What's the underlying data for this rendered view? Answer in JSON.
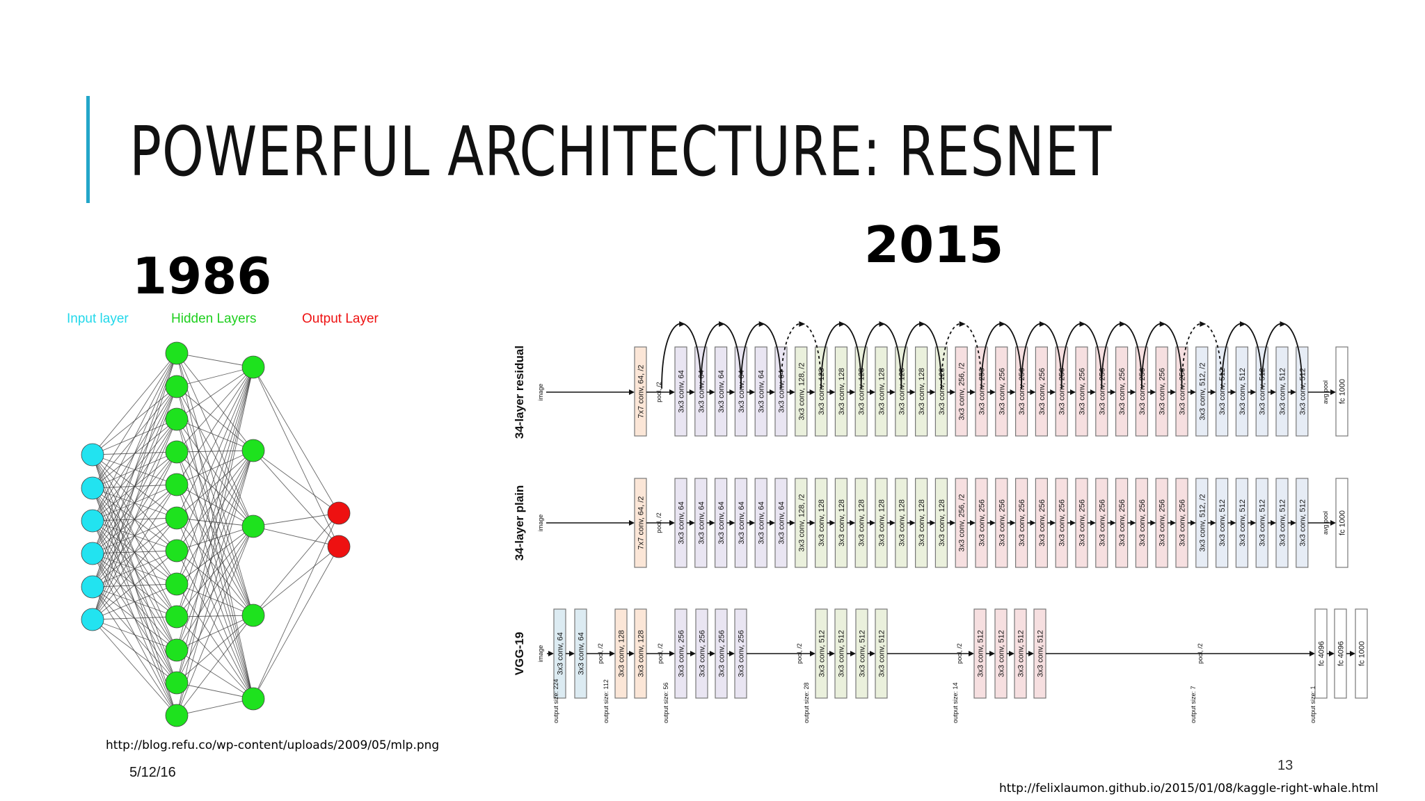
{
  "slide": {
    "title": "POWERFUL ARCHITECTURE: RESNET",
    "year_left": "1986",
    "year_right": "2015",
    "date": "5/12/16",
    "page_number": "13",
    "source_left": "http://blog.refu.co/wp-content/uploads/2009/05/mlp.png",
    "source_right": "http://felixlaumon.github.io/2015/01/08/kaggle-right-whale.html"
  },
  "mlp": {
    "input_label": "Input layer",
    "hidden_label": "Hidden Layers",
    "output_label": "Output Layer",
    "input_color": "#22e3f0",
    "hidden_color": "#1ee21e",
    "output_color": "#ee1111",
    "layer_sizes": [
      6,
      12,
      5,
      2
    ]
  },
  "nets": {
    "image_label": "image",
    "residual": {
      "name": "34-layer residual",
      "stem": "7x7 conv, 64, /2",
      "pool": "pool, /2",
      "blocks": [
        "3x3 conv, 64",
        "3x3 conv, 64",
        "3x3 conv, 64",
        "3x3 conv, 64",
        "3x3 conv, 64",
        "3x3 conv, 64",
        "3x3 conv, 128, /2",
        "3x3 conv, 128",
        "3x3 conv, 128",
        "3x3 conv, 128",
        "3x3 conv, 128",
        "3x3 conv, 128",
        "3x3 conv, 128",
        "3x3 conv, 128",
        "3x3 conv, 256, /2",
        "3x3 conv, 256",
        "3x3 conv, 256",
        "3x3 conv, 256",
        "3x3 conv, 256",
        "3x3 conv, 256",
        "3x3 conv, 256",
        "3x3 conv, 256",
        "3x3 conv, 256",
        "3x3 conv, 256",
        "3x3 conv, 256",
        "3x3 conv, 256",
        "3x3 conv, 512, /2",
        "3x3 conv, 512",
        "3x3 conv, 512",
        "3x3 conv, 512",
        "3x3 conv, 512",
        "3x3 conv, 512"
      ],
      "avg_pool": "avg pool",
      "fc": "fc 1000"
    },
    "plain": {
      "name": "34-layer plain",
      "stem": "7x7 conv, 64, /2",
      "pool": "pool, /2",
      "blocks": [
        "3x3 conv, 64",
        "3x3 conv, 64",
        "3x3 conv, 64",
        "3x3 conv, 64",
        "3x3 conv, 64",
        "3x3 conv, 64",
        "3x3 conv, 128, /2",
        "3x3 conv, 128",
        "3x3 conv, 128",
        "3x3 conv, 128",
        "3x3 conv, 128",
        "3x3 conv, 128",
        "3x3 conv, 128",
        "3x3 conv, 128",
        "3x3 conv, 256, /2",
        "3x3 conv, 256",
        "3x3 conv, 256",
        "3x3 conv, 256",
        "3x3 conv, 256",
        "3x3 conv, 256",
        "3x3 conv, 256",
        "3x3 conv, 256",
        "3x3 conv, 256",
        "3x3 conv, 256",
        "3x3 conv, 256",
        "3x3 conv, 256",
        "3x3 conv, 512, /2",
        "3x3 conv, 512",
        "3x3 conv, 512",
        "3x3 conv, 512",
        "3x3 conv, 512",
        "3x3 conv, 512"
      ],
      "avg_pool": "avg pool",
      "fc": "fc 1000"
    },
    "vgg": {
      "name": "VGG-19",
      "conv64": [
        "3x3 conv, 64",
        "3x3 conv, 64"
      ],
      "pool1": "pool, /2",
      "conv128": [
        "3x3 conv, 128",
        "3x3 conv, 128"
      ],
      "pool2": "pool, /2",
      "conv256": [
        "3x3 conv, 256",
        "3x3 conv, 256",
        "3x3 conv, 256",
        "3x3 conv, 256"
      ],
      "pool3": "pool, /2",
      "conv512a": [
        "3x3 conv, 512",
        "3x3 conv, 512",
        "3x3 conv, 512",
        "3x3 conv, 512"
      ],
      "pool4": "pool, /2",
      "conv512b": [
        "3x3 conv, 512",
        "3x3 conv, 512",
        "3x3 conv, 512",
        "3x3 conv, 512"
      ],
      "pool5": "pool, /2",
      "fc": [
        "fc 4096",
        "fc 4096",
        "fc 1000"
      ],
      "output_sizes": [
        "output size: 224",
        "output size: 112",
        "output size: 56",
        "output size: 28",
        "output size: 14",
        "output size: 7",
        "output size: 1"
      ]
    },
    "colors": {
      "c64": "#e9e5f2",
      "c128": "#eaf0dc",
      "c256": "#f6dfe0",
      "c512": "#e6ecf5",
      "stem": "#fbe6d7",
      "vgg64": "#dcebf2",
      "vgg128": "#fbe6d7"
    }
  }
}
